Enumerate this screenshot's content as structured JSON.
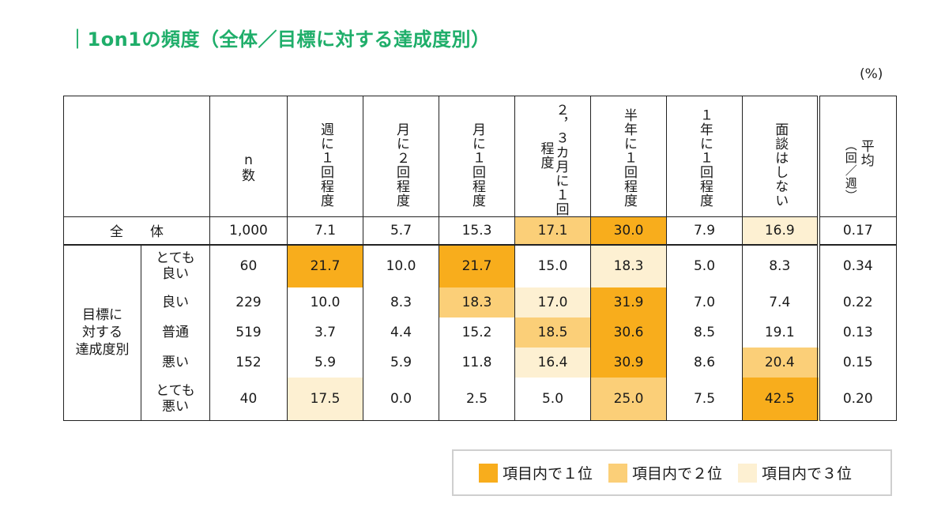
{
  "title": "｜1on1の頻度（全体／目標に対する達成度別）",
  "unit": "(%)",
  "headers": {
    "n": [
      "n",
      "数"
    ],
    "weekly": "週に１回程度",
    "month2": "月に２回程度",
    "month1": "月に１回程度",
    "quarter": [
      "２，３カ月に１回",
      "程度"
    ],
    "halfyear": "半年に１回程度",
    "year1": "１年に１回程度",
    "none": "面談はしない",
    "avg": [
      "平均",
      "（回／週）"
    ]
  },
  "total": {
    "label": "全　　体",
    "n": "1,000",
    "weekly": "7.1",
    "month2": "5.7",
    "month1": "15.3",
    "quarter": "17.1",
    "halfyear": "30.0",
    "year1": "7.9",
    "none": "16.9",
    "avg": "0.17"
  },
  "group_label": [
    "目標に",
    "対する",
    "達成度別"
  ],
  "rows": [
    {
      "label": [
        "とても",
        "良い"
      ],
      "n": "60",
      "weekly": "21.7",
      "month2": "10.0",
      "month1": "21.7",
      "quarter": "15.0",
      "halfyear": "18.3",
      "year1": "5.0",
      "none": "8.3",
      "avg": "0.34"
    },
    {
      "label": [
        "良い"
      ],
      "n": "229",
      "weekly": "10.0",
      "month2": "8.3",
      "month1": "18.3",
      "quarter": "17.0",
      "halfyear": "31.9",
      "year1": "7.0",
      "none": "7.4",
      "avg": "0.22"
    },
    {
      "label": [
        "普通"
      ],
      "n": "519",
      "weekly": "3.7",
      "month2": "4.4",
      "month1": "15.2",
      "quarter": "18.5",
      "halfyear": "30.6",
      "year1": "8.5",
      "none": "19.1",
      "avg": "0.13"
    },
    {
      "label": [
        "悪い"
      ],
      "n": "152",
      "weekly": "5.9",
      "month2": "5.9",
      "month1": "11.8",
      "quarter": "16.4",
      "halfyear": "30.9",
      "year1": "8.6",
      "none": "20.4",
      "avg": "0.15"
    },
    {
      "label": [
        "とても",
        "悪い"
      ],
      "n": "40",
      "weekly": "17.5",
      "month2": "0.0",
      "month1": "2.5",
      "quarter": "5.0",
      "halfyear": "25.0",
      "year1": "7.5",
      "none": "42.5",
      "avg": "0.20"
    }
  ],
  "highlight_colors": {
    "rank1": "#f8ad1c",
    "rank2": "#fbcf78",
    "rank3": "#fdf0d2"
  },
  "title_color": "#1fae6a",
  "legend": [
    {
      "rank": "rank1",
      "label": "項目内で１位"
    },
    {
      "rank": "rank2",
      "label": "項目内で２位"
    },
    {
      "rank": "rank3",
      "label": "項目内で３位"
    }
  ]
}
